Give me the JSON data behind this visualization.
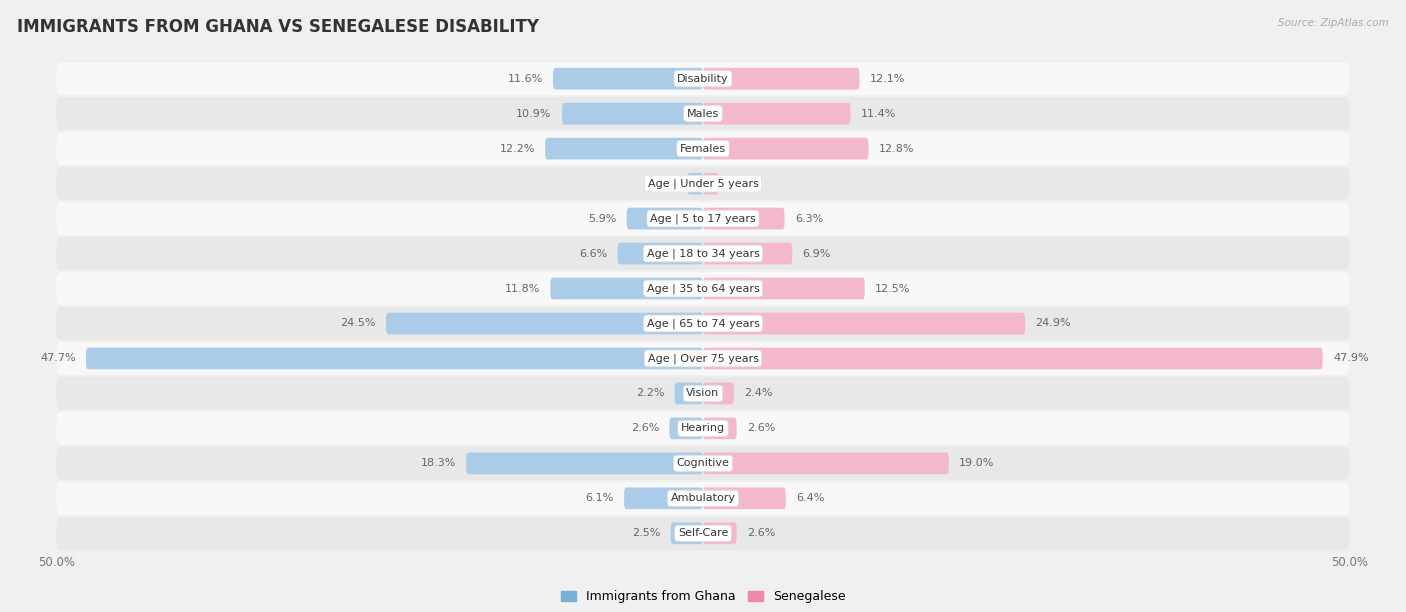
{
  "title": "IMMIGRANTS FROM GHANA VS SENEGALESE DISABILITY",
  "source": "Source: ZipAtlas.com",
  "categories": [
    "Disability",
    "Males",
    "Females",
    "Age | Under 5 years",
    "Age | 5 to 17 years",
    "Age | 18 to 34 years",
    "Age | 35 to 64 years",
    "Age | 65 to 74 years",
    "Age | Over 75 years",
    "Vision",
    "Hearing",
    "Cognitive",
    "Ambulatory",
    "Self-Care"
  ],
  "left_values": [
    11.6,
    10.9,
    12.2,
    1.2,
    5.9,
    6.6,
    11.8,
    24.5,
    47.7,
    2.2,
    2.6,
    18.3,
    6.1,
    2.5
  ],
  "right_values": [
    12.1,
    11.4,
    12.8,
    1.2,
    6.3,
    6.9,
    12.5,
    24.9,
    47.9,
    2.4,
    2.6,
    19.0,
    6.4,
    2.6
  ],
  "left_label": "Immigrants from Ghana",
  "right_label": "Senegalese",
  "left_color": "#aacce8",
  "right_color": "#f4b8cc",
  "left_color_dark": "#92b8d8",
  "right_color_dark": "#e898b0",
  "left_color_legend": "#7ab0d8",
  "right_color_legend": "#f088a8",
  "max_value": 50.0,
  "background_color": "#f0f0f0",
  "row_bg_light": "#f8f8f8",
  "row_bg_dark": "#e8e8e8",
  "title_fontsize": 12,
  "label_fontsize": 8.0,
  "value_fontsize": 8.0
}
